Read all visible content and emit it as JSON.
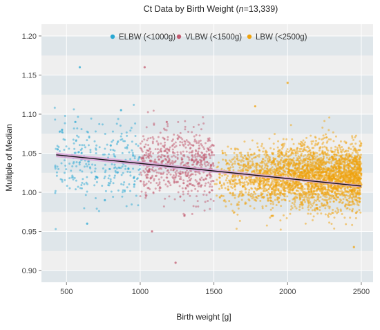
{
  "chart_data": {
    "type": "scatter",
    "title": "Ct Data by Birth Weight (",
    "title_n_symbol": "n",
    "title_n_value": "=13,339)",
    "xlabel": "Birth weight [g]",
    "ylabel": "Multiple of Median",
    "xlim": [
      330,
      2580
    ],
    "ylim": [
      0.885,
      1.215
    ],
    "x_ticks": [
      500,
      1000,
      1500,
      2000,
      2500
    ],
    "x_tick_labels": [
      "500",
      "1000",
      "1500",
      "2000",
      "2500"
    ],
    "y_ticks": [
      0.9,
      0.95,
      1.0,
      1.05,
      1.1,
      1.15,
      1.2
    ],
    "y_tick_labels": [
      "0.90",
      "0.95",
      "1.00",
      "1.05",
      "1.10",
      "1.15",
      "1.20"
    ],
    "grid": true,
    "legend_position": "top-center",
    "series": [
      {
        "name": "ELBW (<1000g)",
        "color": "#29a8d3",
        "n_approx": 300,
        "x_range": [
          420,
          1000
        ],
        "y_center": 1.04,
        "y_spread": 0.025,
        "sample_points": [
          [
            440,
            1.055
          ],
          [
            470,
            1.08
          ],
          [
            560,
            1.09
          ],
          [
            590,
            1.16
          ],
          [
            640,
            0.96
          ],
          [
            700,
            1.02
          ],
          [
            760,
            0.99
          ],
          [
            800,
            1.06
          ],
          [
            870,
            1.105
          ],
          [
            920,
            1.03
          ],
          [
            960,
            1.01
          ]
        ]
      },
      {
        "name": "VLBW (<1500g)",
        "color": "#c25a6f",
        "n_approx": 800,
        "x_range": [
          1000,
          1500
        ],
        "y_center": 1.035,
        "y_spread": 0.022,
        "sample_points": [
          [
            1030,
            1.16
          ],
          [
            1080,
            0.95
          ],
          [
            1180,
            1.09
          ],
          [
            1240,
            0.91
          ],
          [
            1300,
            0.97
          ],
          [
            1360,
            1.06
          ],
          [
            1410,
            1.03
          ],
          [
            1470,
            1.0
          ]
        ]
      },
      {
        "name": "LBW (<2500g)",
        "color": "#f0a20b",
        "n_approx": 12239,
        "x_range": [
          1500,
          2500
        ],
        "y_center": 1.02,
        "y_spread": 0.02,
        "sample_points": [
          [
            1560,
            1.05
          ],
          [
            1780,
            1.11
          ],
          [
            1900,
            0.97
          ],
          [
            2000,
            1.14
          ],
          [
            2200,
            0.98
          ],
          [
            2350,
            1.06
          ],
          [
            2450,
            0.93
          ],
          [
            2500,
            1.01
          ]
        ]
      }
    ],
    "trend_line": {
      "color": "#111111",
      "ci_color": "#d8a3d6",
      "points": [
        [
          430,
          1.048
        ],
        [
          2500,
          1.008
        ]
      ]
    }
  }
}
